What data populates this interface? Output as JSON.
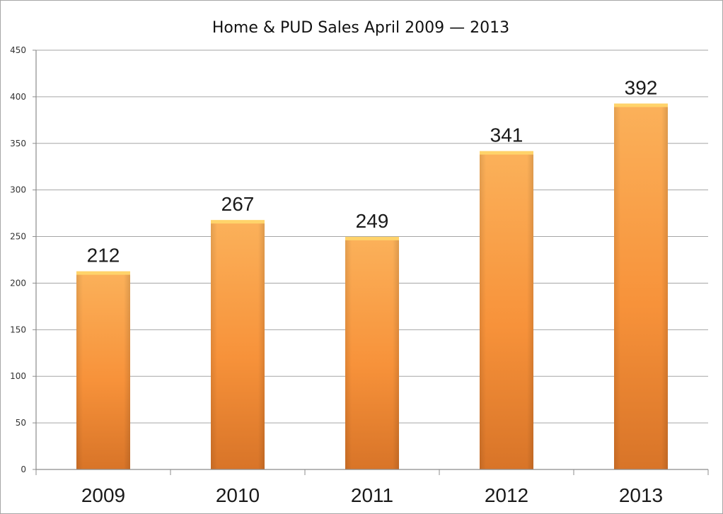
{
  "chart_data": {
    "type": "bar",
    "title": "Home & PUD Sales April 2009 — 2013",
    "xlabel": "",
    "ylabel": "",
    "categories": [
      "2009",
      "2010",
      "2011",
      "2012",
      "2013"
    ],
    "values": [
      212,
      267,
      249,
      341,
      392
    ],
    "data_labels": [
      "212",
      "267",
      "249",
      "341",
      "392"
    ],
    "ylim": [
      0,
      450
    ],
    "yticks": [
      0,
      50,
      100,
      150,
      200,
      250,
      300,
      350,
      400,
      450
    ],
    "ytick_labels": [
      "0",
      "50",
      "100",
      "150",
      "200",
      "250",
      "300",
      "350",
      "400",
      "450"
    ],
    "grid": true,
    "legend": "none",
    "colors": {
      "bar_top": "#fbb15a",
      "bar_mid": "#f7923a",
      "bar_bottom": "#d87428",
      "bar_cap": "#ffd36a",
      "grid": "#a6a6a6"
    }
  }
}
